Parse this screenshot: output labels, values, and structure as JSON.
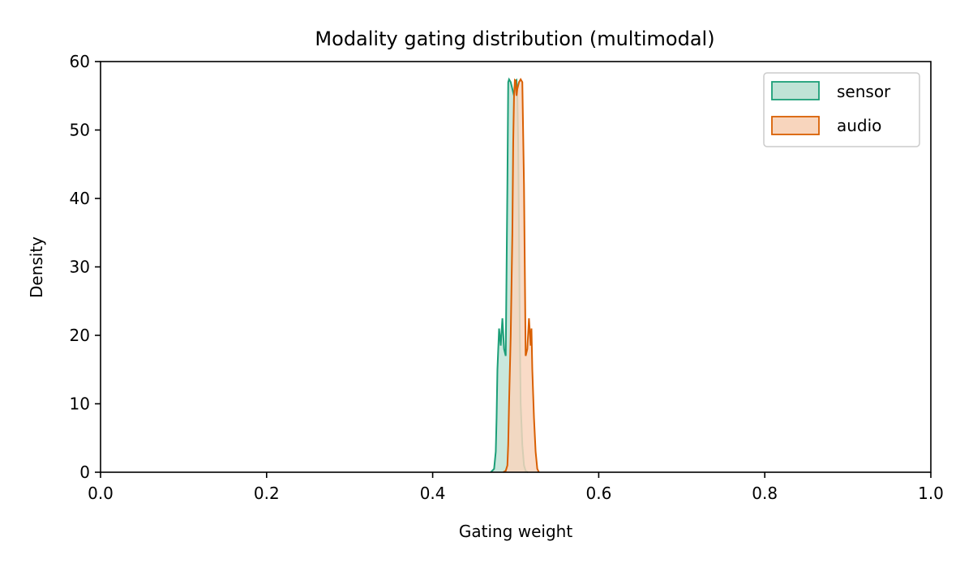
{
  "chart_data": {
    "type": "area",
    "title": "Modality gating distribution (multimodal)",
    "xlabel": "Gating weight",
    "ylabel": "Density",
    "xlim": [
      0.0,
      1.0
    ],
    "ylim": [
      0,
      60
    ],
    "xticks": [
      "0.0",
      "0.2",
      "0.4",
      "0.6",
      "0.8",
      "1.0"
    ],
    "yticks": [
      "0",
      "10",
      "20",
      "30",
      "40",
      "50",
      "60"
    ],
    "grid": false,
    "legend_position": "top-right",
    "series": [
      {
        "name": "sensor",
        "color": "#1b9e77",
        "fill": "#bfe3d6",
        "x": [
          0.47,
          0.474,
          0.476,
          0.477,
          0.478,
          0.48,
          0.482,
          0.484,
          0.486,
          0.488,
          0.49,
          0.491,
          0.492,
          0.494,
          0.496,
          0.498,
          0.5,
          0.501,
          0.502,
          0.503,
          0.504,
          0.505,
          0.506,
          0.508,
          0.51,
          0.512,
          0.515
        ],
        "y": [
          0,
          0.5,
          3,
          8,
          15,
          21,
          18.5,
          22.5,
          18,
          17,
          42,
          57,
          57.4,
          57,
          56,
          55,
          57.2,
          57.3,
          55,
          48,
          35,
          20,
          10,
          4,
          1,
          0.2,
          0
        ]
      },
      {
        "name": "audio",
        "color": "#d95f02",
        "fill": "#f8d5bd",
        "x": [
          0.485,
          0.488,
          0.49,
          0.491,
          0.492,
          0.494,
          0.496,
          0.497,
          0.498,
          0.499,
          0.5,
          0.501,
          0.502,
          0.504,
          0.506,
          0.508,
          0.51,
          0.512,
          0.514,
          0.516,
          0.518,
          0.519,
          0.52,
          0.522,
          0.524,
          0.526,
          0.528
        ],
        "y": [
          0,
          0.2,
          1,
          4,
          10,
          20,
          35,
          48,
          55,
          57.3,
          57.2,
          55,
          56,
          57,
          57.4,
          57,
          42,
          17,
          18,
          22.5,
          18.5,
          21,
          15,
          8,
          3,
          0.5,
          0
        ]
      }
    ]
  }
}
